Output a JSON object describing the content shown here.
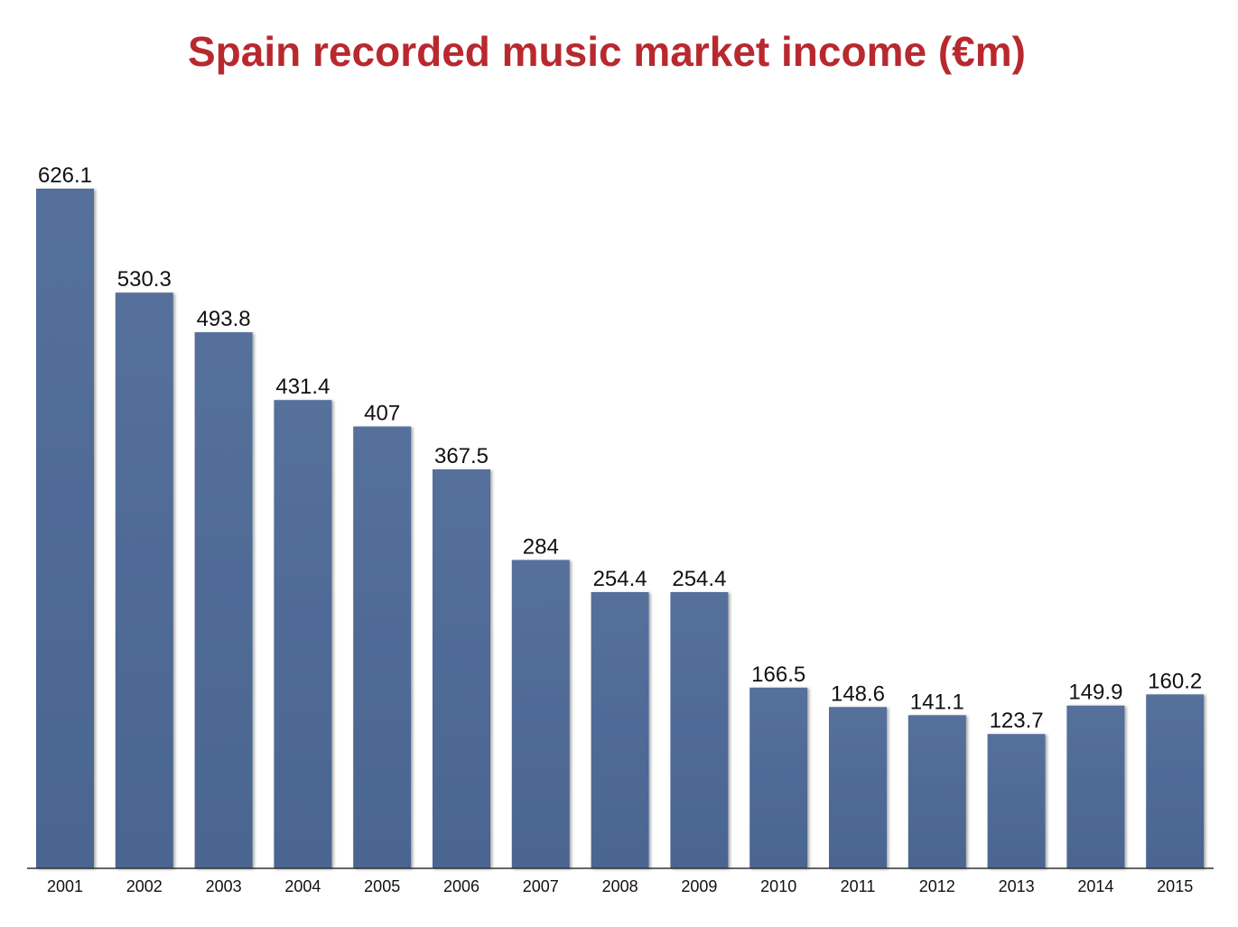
{
  "chart_data": {
    "type": "bar",
    "title": "Spain recorded music market income (€m)",
    "categories": [
      "2001",
      "2002",
      "2003",
      "2004",
      "2005",
      "2006",
      "2007",
      "2008",
      "2009",
      "2010",
      "2011",
      "2012",
      "2013",
      "2014",
      "2015"
    ],
    "values": [
      626.1,
      530.3,
      493.8,
      431.4,
      407,
      367.5,
      284,
      254.4,
      254.4,
      166.5,
      148.6,
      141.1,
      123.7,
      149.9,
      160.2
    ],
    "value_labels": [
      "626.1",
      "530.3",
      "493.8",
      "431.4",
      "407",
      "367.5",
      "284",
      "254.4",
      "254.4",
      "166.5",
      "148.6",
      "141.1",
      "123.7",
      "149.9",
      "160.2"
    ],
    "xlabel": "",
    "ylabel": "",
    "ylim": [
      0,
      626.1
    ],
    "grid": false,
    "legend": "none",
    "colors": {
      "bar": "#4e6892",
      "bar_light": "#5a76a0",
      "title": "#b8292f"
    }
  }
}
